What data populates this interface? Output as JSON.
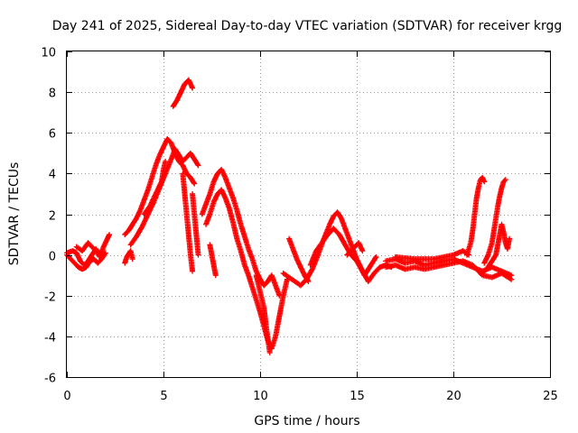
{
  "chart_data": {
    "type": "scatter",
    "title": "Day 241 of 2025, Sidereal Day-to-day VTEC variation (SDTVAR) for receiver krgg",
    "xlabel": "GPS time / hours",
    "ylabel": "SDTVAR / TECUs",
    "xlim": [
      0,
      25
    ],
    "ylim": [
      -6,
      10
    ],
    "xticks": [
      0,
      5,
      10,
      15,
      20,
      25
    ],
    "yticks": [
      -6,
      -4,
      -2,
      0,
      2,
      4,
      6,
      8,
      10
    ],
    "grid": true,
    "marker": "plus",
    "series": [
      {
        "name": "SDTVAR",
        "color": "#ff0000",
        "segments": [
          [
            [
              0.0,
              0.1
            ],
            [
              0.3,
              0.2
            ],
            [
              0.5,
              0.1
            ],
            [
              0.7,
              -0.3
            ],
            [
              0.9,
              -0.5
            ],
            [
              1.1,
              -0.3
            ],
            [
              1.3,
              0.0
            ],
            [
              1.5,
              0.3
            ],
            [
              1.7,
              -0.1
            ],
            [
              1.9,
              0.4
            ],
            [
              2.1,
              0.8
            ],
            [
              2.2,
              1.0
            ]
          ],
          [
            [
              0.0,
              0.0
            ],
            [
              0.2,
              -0.2
            ],
            [
              0.4,
              -0.4
            ],
            [
              0.6,
              -0.6
            ],
            [
              0.8,
              -0.7
            ],
            [
              1.0,
              -0.6
            ],
            [
              1.2,
              -0.3
            ],
            [
              1.4,
              -0.2
            ],
            [
              1.6,
              -0.4
            ],
            [
              1.8,
              -0.2
            ],
            [
              2.0,
              0.1
            ]
          ],
          [
            [
              0.5,
              0.4
            ],
            [
              0.8,
              0.2
            ],
            [
              1.1,
              0.6
            ],
            [
              1.4,
              0.3
            ],
            [
              1.7,
              0.1
            ]
          ],
          [
            [
              3.0,
              -0.4
            ],
            [
              3.1,
              -0.1
            ],
            [
              3.3,
              0.2
            ],
            [
              3.4,
              -0.2
            ]
          ],
          [
            [
              3.0,
              1.0
            ],
            [
              3.2,
              1.2
            ],
            [
              3.4,
              1.5
            ],
            [
              3.6,
              1.8
            ],
            [
              3.8,
              2.2
            ],
            [
              4.0,
              2.7
            ],
            [
              4.2,
              3.2
            ],
            [
              4.4,
              3.8
            ],
            [
              4.6,
              4.4
            ],
            [
              4.8,
              4.9
            ],
            [
              5.0,
              5.3
            ],
            [
              5.2,
              5.7
            ],
            [
              5.4,
              5.5
            ],
            [
              5.6,
              5.0
            ],
            [
              5.8,
              4.6
            ],
            [
              6.0,
              4.4
            ],
            [
              6.2,
              4.0
            ],
            [
              6.4,
              3.8
            ],
            [
              6.6,
              3.5
            ]
          ],
          [
            [
              3.3,
              0.5
            ],
            [
              3.6,
              0.9
            ],
            [
              3.9,
              1.4
            ],
            [
              4.2,
              2.0
            ],
            [
              4.5,
              2.6
            ],
            [
              4.8,
              3.3
            ],
            [
              5.1,
              4.0
            ],
            [
              5.4,
              4.7
            ],
            [
              5.6,
              5.2
            ],
            [
              5.8,
              4.9
            ],
            [
              6.0,
              4.6
            ],
            [
              6.2,
              4.8
            ],
            [
              6.4,
              5.0
            ],
            [
              6.6,
              4.7
            ],
            [
              6.8,
              4.4
            ]
          ],
          [
            [
              4.0,
              2.0
            ],
            [
              4.3,
              2.4
            ],
            [
              4.6,
              3.0
            ],
            [
              4.9,
              3.6
            ],
            [
              5.0,
              4.2
            ],
            [
              5.1,
              4.6
            ]
          ],
          [
            [
              5.5,
              7.3
            ],
            [
              5.7,
              7.6
            ],
            [
              5.9,
              8.0
            ],
            [
              6.1,
              8.4
            ],
            [
              6.3,
              8.6
            ],
            [
              6.5,
              8.2
            ]
          ],
          [
            [
              6.0,
              4.0
            ],
            [
              6.1,
              3.0
            ],
            [
              6.2,
              2.0
            ],
            [
              6.3,
              1.0
            ],
            [
              6.4,
              0.0
            ],
            [
              6.5,
              -0.8
            ]
          ],
          [
            [
              6.5,
              3.0
            ],
            [
              6.6,
              2.0
            ],
            [
              6.7,
              1.0
            ],
            [
              6.8,
              0.0
            ]
          ],
          [
            [
              7.0,
              2.0
            ],
            [
              7.2,
              2.5
            ],
            [
              7.4,
              3.0
            ],
            [
              7.6,
              3.6
            ],
            [
              7.8,
              4.0
            ],
            [
              8.0,
              4.2
            ],
            [
              8.2,
              3.8
            ],
            [
              8.4,
              3.3
            ],
            [
              8.6,
              2.8
            ],
            [
              8.8,
              2.2
            ],
            [
              9.0,
              1.5
            ],
            [
              9.2,
              0.9
            ],
            [
              9.4,
              0.3
            ],
            [
              9.6,
              -0.2
            ],
            [
              9.8,
              -0.8
            ],
            [
              10.0,
              -1.2
            ],
            [
              10.2,
              -1.5
            ],
            [
              10.4,
              -1.3
            ],
            [
              10.6,
              -1.0
            ],
            [
              10.8,
              -1.5
            ],
            [
              11.0,
              -2.0
            ]
          ],
          [
            [
              7.2,
              1.5
            ],
            [
              7.4,
              2.0
            ],
            [
              7.6,
              2.6
            ],
            [
              7.8,
              3.0
            ],
            [
              8.0,
              3.2
            ],
            [
              8.2,
              2.8
            ],
            [
              8.4,
              2.3
            ],
            [
              8.6,
              1.6
            ],
            [
              8.8,
              0.8
            ],
            [
              9.0,
              0.2
            ],
            [
              9.2,
              -0.5
            ],
            [
              9.4,
              -1.0
            ],
            [
              9.6,
              -1.6
            ],
            [
              9.8,
              -2.2
            ],
            [
              10.0,
              -2.8
            ],
            [
              10.2,
              -3.5
            ],
            [
              10.4,
              -4.2
            ],
            [
              10.6,
              -4.6
            ],
            [
              10.8,
              -4.0
            ],
            [
              11.0,
              -3.0
            ],
            [
              11.2,
              -2.0
            ],
            [
              11.4,
              -1.2
            ]
          ],
          [
            [
              7.4,
              0.5
            ],
            [
              7.5,
              0.0
            ],
            [
              7.6,
              -0.5
            ],
            [
              7.7,
              -1.0
            ]
          ],
          [
            [
              9.8,
              -1.0
            ],
            [
              10.0,
              -1.8
            ],
            [
              10.2,
              -2.6
            ],
            [
              10.3,
              -3.4
            ],
            [
              10.4,
              -4.1
            ],
            [
              10.5,
              -4.8
            ]
          ],
          [
            [
              11.5,
              0.8
            ],
            [
              11.7,
              0.3
            ],
            [
              11.9,
              -0.2
            ],
            [
              12.1,
              -0.6
            ],
            [
              12.3,
              -1.0
            ],
            [
              12.5,
              -1.3
            ]
          ],
          [
            [
              11.2,
              -0.9
            ],
            [
              11.5,
              -1.1
            ],
            [
              11.8,
              -1.3
            ],
            [
              12.1,
              -1.5
            ],
            [
              12.4,
              -1.2
            ],
            [
              12.7,
              -0.7
            ],
            [
              13.0,
              0.0
            ],
            [
              13.3,
              0.8
            ],
            [
              13.6,
              1.5
            ],
            [
              13.8,
              1.9
            ],
            [
              14.0,
              2.1
            ],
            [
              14.2,
              1.8
            ],
            [
              14.4,
              1.3
            ],
            [
              14.6,
              0.8
            ],
            [
              14.8,
              0.3
            ],
            [
              15.0,
              -0.2
            ],
            [
              15.2,
              -0.6
            ],
            [
              15.4,
              -1.0
            ],
            [
              15.6,
              -0.7
            ],
            [
              15.8,
              -0.4
            ],
            [
              16.0,
              -0.1
            ]
          ],
          [
            [
              12.6,
              -0.5
            ],
            [
              12.9,
              0.2
            ],
            [
              13.2,
              0.6
            ],
            [
              13.5,
              1.0
            ],
            [
              13.8,
              1.3
            ],
            [
              14.1,
              1.0
            ],
            [
              14.4,
              0.5
            ],
            [
              14.7,
              0.0
            ],
            [
              15.0,
              -0.3
            ],
            [
              15.3,
              -0.8
            ],
            [
              15.6,
              -1.3
            ],
            [
              15.9,
              -0.9
            ],
            [
              16.2,
              -0.6
            ],
            [
              16.5,
              -0.5
            ],
            [
              16.8,
              -0.6
            ]
          ],
          [
            [
              14.5,
              0.0
            ],
            [
              14.8,
              0.3
            ],
            [
              15.1,
              0.6
            ],
            [
              15.3,
              0.2
            ]
          ],
          [
            [
              16.5,
              -0.3
            ],
            [
              17.0,
              -0.2
            ],
            [
              17.5,
              -0.4
            ],
            [
              18.0,
              -0.3
            ],
            [
              18.5,
              -0.5
            ],
            [
              19.0,
              -0.4
            ],
            [
              19.5,
              -0.3
            ],
            [
              20.0,
              -0.2
            ],
            [
              20.5,
              -0.4
            ],
            [
              21.0,
              -0.6
            ],
            [
              21.5,
              -0.8
            ],
            [
              22.0,
              -0.6
            ],
            [
              22.5,
              -0.8
            ],
            [
              23.0,
              -1.0
            ]
          ],
          [
            [
              16.5,
              -0.6
            ],
            [
              17.0,
              -0.5
            ],
            [
              17.5,
              -0.7
            ],
            [
              18.0,
              -0.6
            ],
            [
              18.5,
              -0.7
            ],
            [
              19.0,
              -0.6
            ],
            [
              19.5,
              -0.5
            ],
            [
              20.0,
              -0.4
            ],
            [
              20.5,
              -0.3
            ],
            [
              21.0,
              -0.5
            ],
            [
              21.5,
              -1.0
            ],
            [
              22.0,
              -1.1
            ],
            [
              22.5,
              -0.9
            ],
            [
              23.0,
              -1.2
            ]
          ],
          [
            [
              17.0,
              -0.1
            ],
            [
              18.0,
              -0.2
            ],
            [
              19.0,
              -0.2
            ],
            [
              20.0,
              0.0
            ],
            [
              20.5,
              0.2
            ],
            [
              20.8,
              0.0
            ]
          ],
          [
            [
              20.7,
              0.0
            ],
            [
              20.9,
              0.6
            ],
            [
              21.0,
              1.2
            ],
            [
              21.1,
              2.0
            ],
            [
              21.2,
              2.8
            ],
            [
              21.3,
              3.3
            ],
            [
              21.4,
              3.7
            ],
            [
              21.5,
              3.8
            ],
            [
              21.6,
              3.6
            ]
          ],
          [
            [
              21.6,
              -0.4
            ],
            [
              21.8,
              0.0
            ],
            [
              22.0,
              0.6
            ],
            [
              22.1,
              1.2
            ],
            [
              22.2,
              1.8
            ],
            [
              22.3,
              2.4
            ],
            [
              22.4,
              2.9
            ],
            [
              22.5,
              3.3
            ],
            [
              22.6,
              3.6
            ],
            [
              22.7,
              3.7
            ]
          ],
          [
            [
              21.5,
              -0.9
            ],
            [
              21.8,
              -0.6
            ],
            [
              22.0,
              -0.3
            ],
            [
              22.2,
              0.0
            ],
            [
              22.3,
              0.5
            ],
            [
              22.4,
              1.0
            ],
            [
              22.5,
              1.5
            ],
            [
              22.6,
              1.1
            ],
            [
              22.7,
              0.6
            ],
            [
              22.8,
              0.3
            ],
            [
              22.9,
              0.8
            ]
          ]
        ]
      }
    ]
  }
}
